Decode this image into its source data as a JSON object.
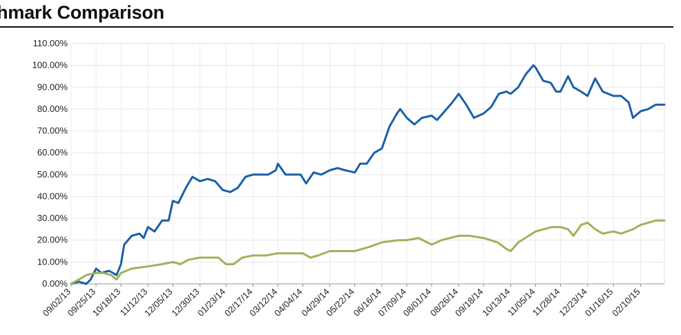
{
  "chart_data": {
    "type": "line",
    "title": "nchmark Comparison",
    "ylim": [
      0,
      110
    ],
    "yticks": [
      "0.00%",
      "10.00%",
      "20.00%",
      "30.00%",
      "40.00%",
      "50.00%",
      "60.00%",
      "70.00%",
      "80.00%",
      "90.00%",
      "100.00%",
      "110.00%"
    ],
    "xticks": [
      "09/02/13",
      "09/25/13",
      "10/18/13",
      "11/12/13",
      "12/05/13",
      "12/30/13",
      "01/23/14",
      "02/17/14",
      "03/12/14",
      "04/04/14",
      "04/29/14",
      "05/22/14",
      "06/16/14",
      "07/09/14",
      "08/01/14",
      "08/26/14",
      "09/18/14",
      "10/13/14",
      "11/05/14",
      "11/28/14",
      "12/23/14",
      "01/16/15",
      "02/10/15"
    ],
    "x_end": "03/04/15",
    "grid": true,
    "series": [
      {
        "color": "#1a5fa8",
        "points": [
          [
            "09/02/13",
            0
          ],
          [
            "09/09/13",
            1
          ],
          [
            "09/16/13",
            0
          ],
          [
            "09/20/13",
            2
          ],
          [
            "09/25/13",
            7
          ],
          [
            "09/30/13",
            5
          ],
          [
            "10/07/13",
            6
          ],
          [
            "10/14/13",
            4
          ],
          [
            "10/18/13",
            9
          ],
          [
            "10/21/13",
            18
          ],
          [
            "10/28/13",
            22
          ],
          [
            "11/04/13",
            23
          ],
          [
            "11/08/13",
            21
          ],
          [
            "11/12/13",
            26
          ],
          [
            "11/18/13",
            24
          ],
          [
            "11/25/13",
            29
          ],
          [
            "12/01/13",
            29
          ],
          [
            "12/05/13",
            38
          ],
          [
            "12/10/13",
            37
          ],
          [
            "12/17/13",
            44
          ],
          [
            "12/23/13",
            49
          ],
          [
            "12/30/13",
            47
          ],
          [
            "01/06/14",
            48
          ],
          [
            "01/13/14",
            47
          ],
          [
            "01/20/14",
            43
          ],
          [
            "01/27/14",
            42
          ],
          [
            "02/03/14",
            44
          ],
          [
            "02/10/14",
            49
          ],
          [
            "02/17/14",
            50
          ],
          [
            "02/24/14",
            50
          ],
          [
            "03/03/14",
            50
          ],
          [
            "03/10/14",
            52
          ],
          [
            "03/12/14",
            55
          ],
          [
            "03/19/14",
            50
          ],
          [
            "03/26/14",
            50
          ],
          [
            "04/02/14",
            50
          ],
          [
            "04/07/14",
            46
          ],
          [
            "04/14/14",
            51
          ],
          [
            "04/21/14",
            50
          ],
          [
            "04/29/14",
            52
          ],
          [
            "05/06/14",
            53
          ],
          [
            "05/13/14",
            52
          ],
          [
            "05/22/14",
            51
          ],
          [
            "05/27/14",
            55
          ],
          [
            "06/02/14",
            55
          ],
          [
            "06/09/14",
            60
          ],
          [
            "06/16/14",
            62
          ],
          [
            "06/23/14",
            72
          ],
          [
            "06/30/14",
            78
          ],
          [
            "07/03/14",
            80
          ],
          [
            "07/09/14",
            76
          ],
          [
            "07/16/14",
            73
          ],
          [
            "07/23/14",
            76
          ],
          [
            "08/01/14",
            77
          ],
          [
            "08/06/14",
            75
          ],
          [
            "08/13/14",
            79
          ],
          [
            "08/20/14",
            83
          ],
          [
            "08/26/14",
            87
          ],
          [
            "09/02/14",
            82
          ],
          [
            "09/09/14",
            76
          ],
          [
            "09/18/14",
            78
          ],
          [
            "09/25/14",
            81
          ],
          [
            "10/02/14",
            87
          ],
          [
            "10/09/14",
            88
          ],
          [
            "10/13/14",
            87
          ],
          [
            "10/20/14",
            90
          ],
          [
            "10/27/14",
            96
          ],
          [
            "11/03/14",
            100
          ],
          [
            "11/05/14",
            99
          ],
          [
            "11/12/14",
            93
          ],
          [
            "11/19/14",
            92
          ],
          [
            "11/24/14",
            88
          ],
          [
            "11/28/14",
            88
          ],
          [
            "12/05/14",
            95
          ],
          [
            "12/10/14",
            90
          ],
          [
            "12/17/14",
            88
          ],
          [
            "12/23/14",
            86
          ],
          [
            "12/30/14",
            94
          ],
          [
            "01/06/15",
            88
          ],
          [
            "01/16/15",
            86
          ],
          [
            "01/23/15",
            86
          ],
          [
            "01/30/15",
            83
          ],
          [
            "02/03/15",
            76
          ],
          [
            "02/10/15",
            79
          ],
          [
            "02/17/15",
            80
          ],
          [
            "02/24/15",
            82
          ],
          [
            "03/04/15",
            82
          ]
        ]
      },
      {
        "color": "#9ab45b",
        "points": [
          [
            "09/02/13",
            0
          ],
          [
            "09/09/13",
            2
          ],
          [
            "09/16/13",
            4
          ],
          [
            "09/25/13",
            5
          ],
          [
            "10/02/13",
            5
          ],
          [
            "10/09/13",
            4
          ],
          [
            "10/14/13",
            2
          ],
          [
            "10/18/13",
            5
          ],
          [
            "10/28/13",
            7
          ],
          [
            "11/12/13",
            8
          ],
          [
            "11/25/13",
            9
          ],
          [
            "12/05/13",
            10
          ],
          [
            "12/12/13",
            9
          ],
          [
            "12/19/13",
            11
          ],
          [
            "12/30/13",
            12
          ],
          [
            "01/09/14",
            12
          ],
          [
            "01/16/14",
            12
          ],
          [
            "01/23/14",
            9
          ],
          [
            "01/30/14",
            9
          ],
          [
            "02/07/14",
            12
          ],
          [
            "02/17/14",
            13
          ],
          [
            "03/01/14",
            13
          ],
          [
            "03/12/14",
            14
          ],
          [
            "03/26/14",
            14
          ],
          [
            "04/04/14",
            14
          ],
          [
            "04/11/14",
            12
          ],
          [
            "04/18/14",
            13
          ],
          [
            "04/29/14",
            15
          ],
          [
            "05/22/14",
            15
          ],
          [
            "06/05/14",
            17
          ],
          [
            "06/16/14",
            19
          ],
          [
            "07/01/14",
            20
          ],
          [
            "07/09/14",
            20
          ],
          [
            "07/20/14",
            21
          ],
          [
            "08/01/14",
            18
          ],
          [
            "08/10/14",
            20
          ],
          [
            "08/26/14",
            22
          ],
          [
            "09/05/14",
            22
          ],
          [
            "09/18/14",
            21
          ],
          [
            "10/01/14",
            19
          ],
          [
            "10/09/14",
            16
          ],
          [
            "10/13/14",
            15
          ],
          [
            "10/20/14",
            19
          ],
          [
            "11/05/14",
            24
          ],
          [
            "11/20/14",
            26
          ],
          [
            "11/28/14",
            26
          ],
          [
            "12/05/14",
            25
          ],
          [
            "12/10/14",
            22
          ],
          [
            "12/17/14",
            27
          ],
          [
            "12/23/14",
            28
          ],
          [
            "12/30/14",
            25
          ],
          [
            "01/06/15",
            23
          ],
          [
            "01/16/15",
            24
          ],
          [
            "01/23/15",
            23
          ],
          [
            "02/03/15",
            25
          ],
          [
            "02/10/15",
            27
          ],
          [
            "02/24/15",
            29
          ],
          [
            "03/04/15",
            29
          ]
        ]
      }
    ]
  }
}
